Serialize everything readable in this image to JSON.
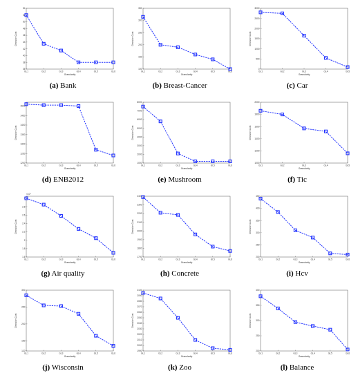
{
  "chart_data": [
    {
      "id": "a",
      "type": "line",
      "caption_letter": "(a)",
      "caption_name": "Bank",
      "xlabel": "Granularity",
      "ylabel": "Decision Cost",
      "categories": [
        "GL1",
        "GL2",
        "GL3",
        "GL4",
        "GL5",
        "GL6"
      ],
      "series": [
        {
          "values": [
            52,
            43.5,
            41.5,
            38,
            38,
            38
          ]
        }
      ],
      "ylim": [
        36,
        54
      ],
      "yticks": [
        36,
        38,
        40,
        42,
        44,
        46,
        48,
        50,
        52,
        54
      ],
      "color": "#2233ff"
    },
    {
      "id": "b",
      "type": "line",
      "caption_letter": "(b)",
      "caption_name": "Breast-Cancer",
      "xlabel": "Granularity",
      "ylabel": "Decision Cost",
      "categories": [
        "GL1",
        "GL2",
        "GL3",
        "GL4",
        "GL5",
        "GL6"
      ],
      "series": [
        {
          "values": [
            315,
            200,
            190,
            160,
            140,
            100
          ]
        }
      ],
      "ylim": [
        100,
        350
      ],
      "yticks": [
        100,
        150,
        200,
        250,
        300,
        350
      ],
      "color": "#2233ff"
    },
    {
      "id": "c",
      "type": "line",
      "caption_letter": "(c)",
      "caption_name": "Car",
      "xlabel": "Granularity",
      "ylabel": "Decision Cost",
      "categories": [
        "GL1",
        "GL2",
        "GL3",
        "GL4",
        "GL5"
      ],
      "series": [
        {
          "values": [
            2800,
            2750,
            1650,
            550,
            100
          ]
        }
      ],
      "ylim": [
        0,
        3000
      ],
      "yticks": [
        0,
        500,
        1000,
        1500,
        2000,
        2500,
        3000
      ],
      "color": "#2233ff"
    },
    {
      "id": "d",
      "type": "line",
      "caption_letter": "(d)",
      "caption_name": "ENB2012",
      "xlabel": "Granularity",
      "ylabel": "Decision Cost",
      "categories": [
        "GL1",
        "GL2",
        "GL3",
        "GL4",
        "GL5",
        "GL6"
      ],
      "series": [
        {
          "values": [
            1510,
            1505,
            1505,
            1500,
            1270,
            1240
          ]
        }
      ],
      "ylim": [
        1200,
        1520
      ],
      "yticks": [
        1200,
        1250,
        1300,
        1350,
        1400,
        1450,
        1500
      ],
      "color": "#2233ff"
    },
    {
      "id": "e",
      "type": "line",
      "caption_letter": "(e)",
      "caption_name": "Mushroom",
      "xlabel": "Granularity",
      "ylabel": "Decision Cost",
      "categories": [
        "GL1",
        "GL2",
        "GL3",
        "GL4",
        "GL5",
        "GL6"
      ],
      "series": [
        {
          "values": [
            7500,
            5800,
            2100,
            1200,
            1200,
            1200
          ]
        }
      ],
      "ylim": [
        1000,
        8000
      ],
      "yticks": [
        1000,
        2000,
        3000,
        4000,
        5000,
        6000,
        7000,
        8000
      ],
      "color": "#2233ff"
    },
    {
      "id": "f",
      "type": "line",
      "caption_letter": "(f)",
      "caption_name": "Tic",
      "xlabel": "Granularity",
      "ylabel": "Decision Cost",
      "categories": [
        "GL1",
        "GL2",
        "GL3",
        "GL4",
        "GL5"
      ],
      "series": [
        {
          "values": [
            1860,
            1800,
            1570,
            1520,
            1160
          ]
        }
      ],
      "ylim": [
        1000,
        2000
      ],
      "yticks": [
        1000,
        1200,
        1400,
        1600,
        1800,
        2000
      ],
      "color": "#2233ff"
    },
    {
      "id": "g",
      "type": "line",
      "caption_letter": "(g)",
      "caption_name": "Air quality",
      "xlabel": "Granularity",
      "ylabel": "Decision Cost",
      "categories": [
        "GL1",
        "GL2",
        "GL3",
        "GL4",
        "GL5",
        "GL6"
      ],
      "series": [
        {
          "values": [
            3.0,
            2.85,
            2.58,
            2.27,
            2.05,
            1.7
          ]
        }
      ],
      "ylim": [
        1.6,
        3.05
      ],
      "yticks": [
        1.6,
        1.8,
        2,
        2.2,
        2.4,
        2.6,
        2.8,
        3
      ],
      "exponent": "×10⁴",
      "color": "#2233ff"
    },
    {
      "id": "h",
      "type": "line",
      "caption_letter": "(h)",
      "caption_name": "Concrete",
      "xlabel": "Granularity",
      "ylabel": "Decision Cost",
      "categories": [
        "GL1",
        "GL2",
        "GL3",
        "GL4",
        "GL5",
        "GL6"
      ],
      "series": [
        {
          "values": [
            2390,
            2210,
            2185,
            1960,
            1820,
            1770
          ]
        }
      ],
      "ylim": [
        1700,
        2400
      ],
      "yticks": [
        1700,
        1800,
        1900,
        2000,
        2100,
        2200,
        2300,
        2400
      ],
      "color": "#2233ff"
    },
    {
      "id": "i",
      "type": "line",
      "caption_letter": "(i)",
      "caption_name": "Hcv",
      "xlabel": "Granularity",
      "ylabel": "Decision Cost",
      "categories": [
        "GL1",
        "GL2",
        "GL3",
        "GL4",
        "GL5",
        "GL6"
      ],
      "series": [
        {
          "values": [
            440,
            385,
            310,
            280,
            215,
            210
          ]
        }
      ],
      "ylim": [
        200,
        450
      ],
      "yticks": [
        200,
        250,
        300,
        350,
        400,
        450
      ],
      "color": "#2233ff"
    },
    {
      "id": "j",
      "type": "line",
      "caption_letter": "(j)",
      "caption_name": "Wisconsin",
      "xlabel": "Granularity",
      "ylabel": "Decision Cost",
      "categories": [
        "GL1",
        "GL2",
        "GL3",
        "GL4",
        "GL5",
        "GL6"
      ],
      "series": [
        {
          "values": [
            285,
            255,
            253,
            230,
            165,
            135
          ]
        }
      ],
      "ylim": [
        120,
        300
      ],
      "yticks": [
        120,
        150,
        200,
        250,
        300
      ],
      "color": "#2233ff"
    },
    {
      "id": "k",
      "type": "line",
      "caption_letter": "(k)",
      "caption_name": "Zoo",
      "xlabel": "Granularity",
      "ylabel": "Decision Cost",
      "categories": [
        "GL1",
        "GL2",
        "GL3",
        "GL4",
        "GL5",
        "GL6"
      ],
      "series": [
        {
          "values": [
            2095,
            2085,
            2050,
            2010,
            1995,
            1992
          ]
        }
      ],
      "ylim": [
        1990,
        2100
      ],
      "yticks": [
        1990,
        2000,
        2010,
        2020,
        2030,
        2040,
        2050,
        2060,
        2070,
        2080,
        2090,
        2100
      ],
      "color": "#2233ff"
    },
    {
      "id": "l",
      "type": "line",
      "caption_letter": "(l)",
      "caption_name": "Balance",
      "xlabel": "Granularity",
      "ylabel": "Decision Cost",
      "categories": [
        "GL1",
        "GL2",
        "GL3",
        "GL4",
        "GL5",
        "GL6"
      ],
      "series": [
        {
          "values": [
            380,
            340,
            295,
            282,
            270,
            205
          ]
        }
      ],
      "ylim": [
        200,
        400
      ],
      "yticks": [
        200,
        250,
        300,
        350,
        400
      ],
      "color": "#2233ff"
    }
  ]
}
